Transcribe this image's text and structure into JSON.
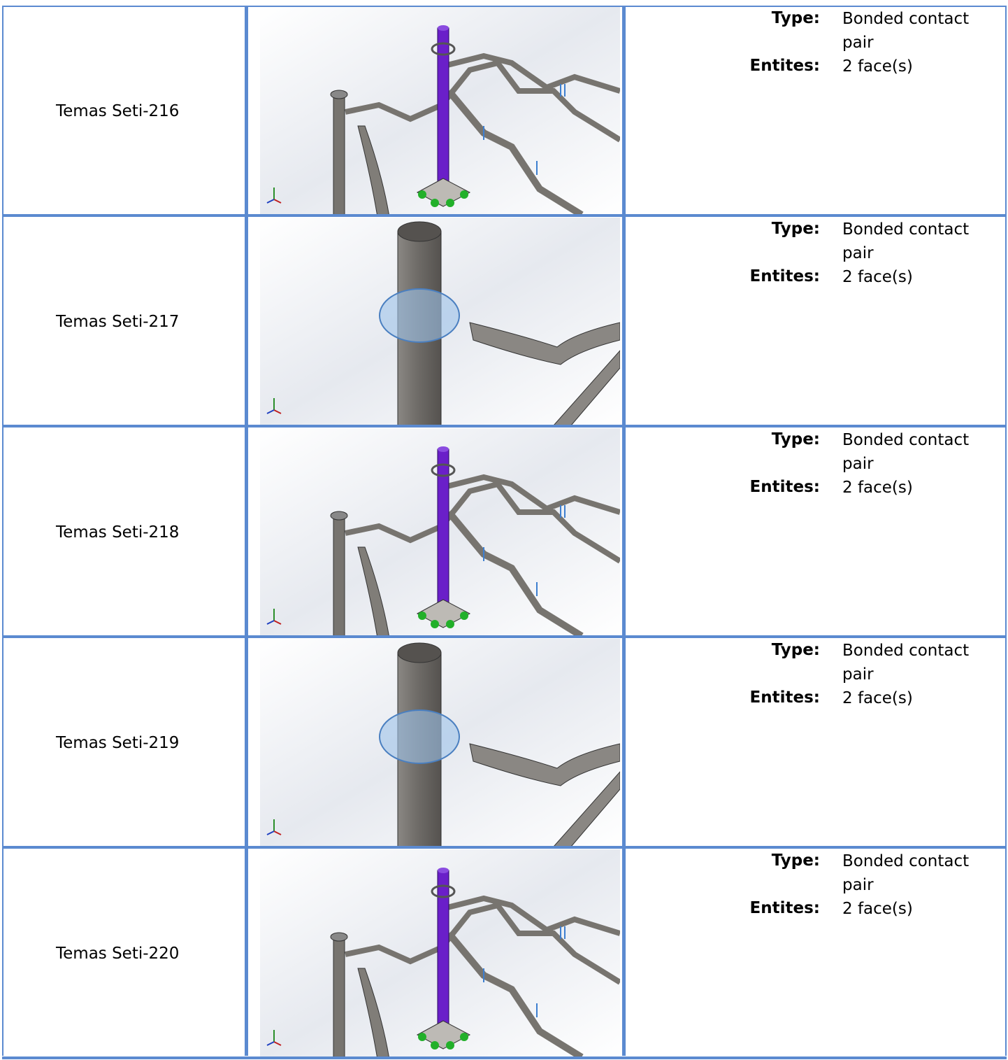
{
  "table": {
    "rows": [
      {
        "name": "Temas Seti-216",
        "type_label": "Type:",
        "type": "Bonded contact pair",
        "entities_label": "Entites:",
        "entities": "2 face(s)"
      },
      {
        "name": "Temas Seti-217",
        "type_label": "Type:",
        "type": "Bonded contact pair",
        "entities_label": "Entites:",
        "entities": "2 face(s)"
      },
      {
        "name": "Temas Seti-218",
        "type_label": "Type:",
        "type": "Bonded contact pair",
        "entities_label": "Entites:",
        "entities": "2 face(s)"
      },
      {
        "name": "Temas Seti-219",
        "type_label": "Type:",
        "type": "Bonded contact pair",
        "entities_label": "Entites:",
        "entities": "2 face(s)"
      },
      {
        "name": "Temas Seti-220",
        "type_label": "Type:",
        "type": "Bonded contact pair",
        "entities_label": "Entites:",
        "entities": "2 face(s)"
      }
    ]
  }
}
